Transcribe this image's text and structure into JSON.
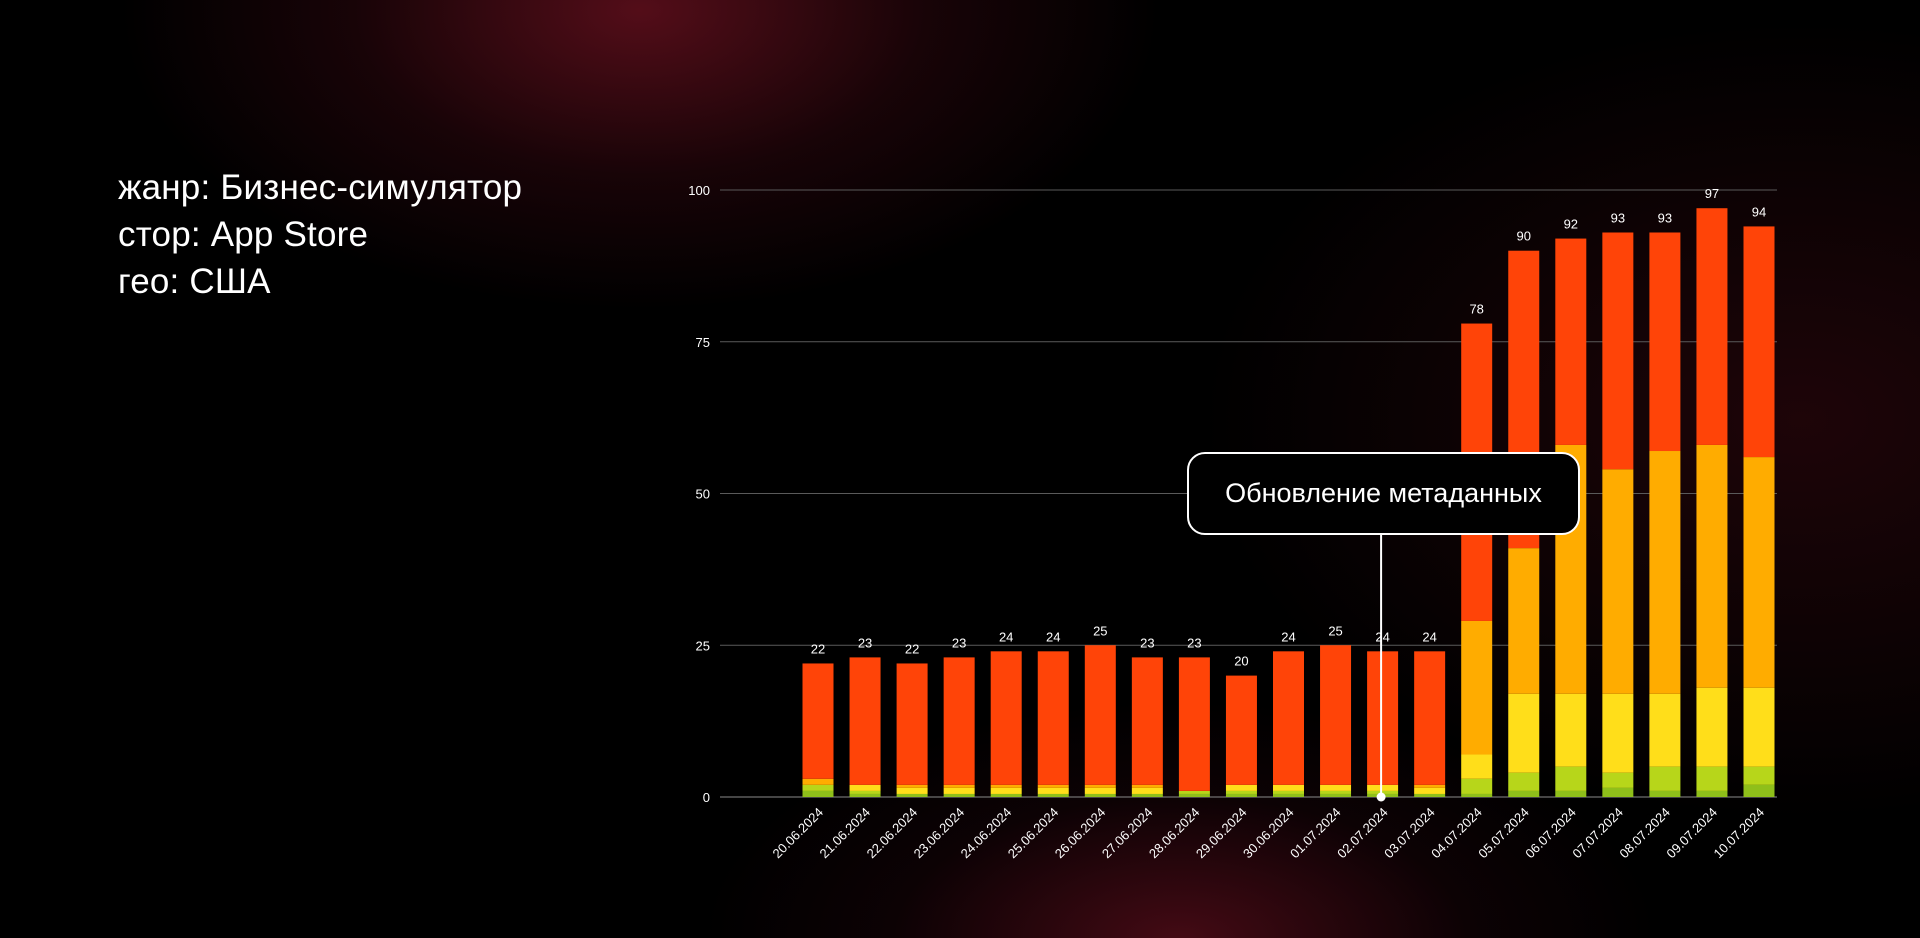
{
  "filters": {
    "genre": "жанр: Бизнес-симулятор",
    "store": "стор: App Store",
    "geo": "гео: США"
  },
  "annotation": {
    "label": "Обновление метаданных",
    "date": "02.07.2024"
  },
  "chart_data": {
    "type": "bar",
    "stacked": true,
    "title": "",
    "xlabel": "",
    "ylabel": "",
    "ylim": [
      0,
      100
    ],
    "yticks": [
      0,
      25,
      50,
      75,
      100
    ],
    "grid": true,
    "legend": "none",
    "categories": [
      "20.06.2024",
      "21.06.2024",
      "22.06.2024",
      "23.06.2024",
      "24.06.2024",
      "25.06.2024",
      "26.06.2024",
      "27.06.2024",
      "28.06.2024",
      "29.06.2024",
      "30.06.2024",
      "01.07.2024",
      "02.07.2024",
      "03.07.2024",
      "04.07.2024",
      "05.07.2024",
      "06.07.2024",
      "07.07.2024",
      "08.07.2024",
      "09.07.2024",
      "10.07.2024"
    ],
    "totals": [
      22,
      23,
      22,
      23,
      24,
      24,
      25,
      23,
      23,
      20,
      24,
      25,
      24,
      24,
      78,
      90,
      92,
      93,
      93,
      97,
      94
    ],
    "series": [
      {
        "color": "#8fbf1a",
        "values": [
          1,
          0.5,
          0.5,
          0.5,
          0.5,
          0.5,
          0.5,
          0.5,
          0.5,
          0.5,
          0.5,
          0.5,
          0.5,
          0.5,
          0.5,
          1,
          1,
          1.5,
          1,
          1,
          2
        ]
      },
      {
        "color": "#b7d61a",
        "values": [
          1,
          0.5,
          0,
          0,
          0,
          0,
          0,
          0,
          0.5,
          0.5,
          0.5,
          0.5,
          0.5,
          0,
          2.5,
          3,
          4,
          2.5,
          4,
          4,
          3
        ]
      },
      {
        "color": "#ffde1a",
        "values": [
          0,
          1,
          1,
          1,
          1,
          1,
          1,
          1,
          0,
          1,
          1,
          1,
          1,
          1,
          4,
          13,
          12,
          13,
          12,
          13,
          13
        ]
      },
      {
        "color": "#ffac00",
        "values": [
          1,
          0,
          0.5,
          0.5,
          0.5,
          0.5,
          0.5,
          0.5,
          0,
          0,
          0,
          0,
          0,
          0.5,
          22,
          24,
          41,
          37,
          40,
          40,
          38
        ]
      },
      {
        "color": "#ff4408",
        "values": [
          19,
          21,
          20,
          21,
          22,
          22,
          23,
          21,
          22,
          18,
          22,
          23,
          22,
          22,
          49,
          49,
          34,
          39,
          36,
          39,
          38
        ]
      }
    ]
  }
}
